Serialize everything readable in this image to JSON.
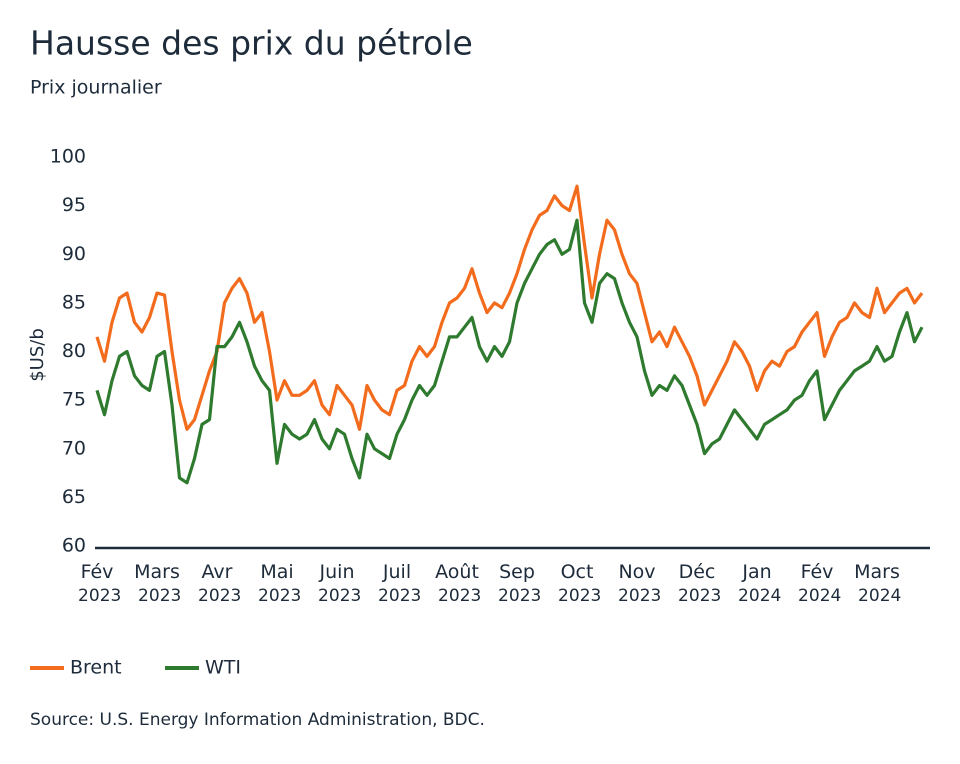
{
  "chart_data": {
    "type": "line",
    "title": "Hausse des prix du pétrole",
    "subtitle": "Prix journalier",
    "y_label": "$US/b",
    "source": "Source: U.S. Energy Information Administration, BDC.",
    "categories": [
      "Fév 2023",
      null,
      null,
      null,
      null,
      null,
      null,
      null,
      "Mars 2023",
      null,
      null,
      null,
      null,
      null,
      null,
      null,
      "Avr 2023",
      null,
      null,
      null,
      null,
      null,
      null,
      null,
      "Mai 2023",
      null,
      null,
      null,
      null,
      null,
      null,
      null,
      "Juin 2023",
      null,
      null,
      null,
      null,
      null,
      null,
      null,
      "Juil 2023",
      null,
      null,
      null,
      null,
      null,
      null,
      null,
      "Août 2023",
      null,
      null,
      null,
      null,
      null,
      null,
      null,
      "Sep 2023",
      null,
      null,
      null,
      null,
      null,
      null,
      null,
      "Oct 2023",
      null,
      null,
      null,
      null,
      null,
      null,
      null,
      "Nov 2023",
      null,
      null,
      null,
      null,
      null,
      null,
      null,
      "Déc 2023",
      null,
      null,
      null,
      null,
      null,
      null,
      null,
      "Jan 2024",
      null,
      null,
      null,
      null,
      null,
      null,
      null,
      "Fév 2024",
      null,
      null,
      null,
      null,
      null,
      null,
      null,
      "Mars 2024",
      null,
      null,
      null,
      null,
      null,
      null
    ],
    "series": [
      {
        "name": "Brent",
        "color": "#f36c1d",
        "values": [
          81.5,
          79,
          83,
          85.5,
          86,
          83,
          82,
          83.5,
          86,
          85.8,
          80,
          75,
          72,
          73,
          75.5,
          78,
          80,
          85,
          86.5,
          87.5,
          86,
          83,
          84,
          80,
          75,
          77,
          75.5,
          75.5,
          76,
          77,
          74.5,
          73.5,
          76.5,
          75.5,
          74.5,
          72,
          76.5,
          75,
          74,
          73.5,
          76,
          76.5,
          79,
          80.5,
          79.5,
          80.5,
          83,
          85,
          85.5,
          86.5,
          88.5,
          86,
          84,
          85,
          84.5,
          86,
          88,
          90.5,
          92.5,
          94,
          94.5,
          96,
          95,
          94.5,
          97,
          91,
          85.5,
          90,
          93.5,
          92.5,
          90,
          88,
          87,
          84,
          81,
          82,
          80.5,
          82.5,
          81,
          79.5,
          77.5,
          74.5,
          76,
          77.5,
          79,
          81,
          80,
          78.5,
          76,
          78,
          79,
          78.5,
          80,
          80.5,
          82,
          83,
          84,
          79.5,
          81.5,
          83,
          83.5,
          85,
          84,
          83.5,
          86.5,
          84,
          85,
          86,
          86.5,
          85,
          86
        ]
      },
      {
        "name": "WTI",
        "color": "#2e7a2e",
        "values": [
          76,
          73.5,
          77,
          79.5,
          80,
          77.5,
          76.5,
          76,
          79.5,
          80,
          74.5,
          67,
          66.5,
          69,
          72.5,
          73,
          80.5,
          80.5,
          81.5,
          83,
          81,
          78.5,
          77,
          76,
          68.5,
          72.5,
          71.5,
          71,
          71.5,
          73,
          71,
          70,
          72,
          71.5,
          69,
          67,
          71.5,
          70,
          69.5,
          69,
          71.5,
          73,
          75,
          76.5,
          75.5,
          76.5,
          79,
          81.5,
          81.5,
          82.5,
          83.5,
          80.5,
          79,
          80.5,
          79.5,
          81,
          85,
          87,
          88.5,
          90,
          91,
          91.5,
          90,
          90.5,
          93.5,
          85,
          83,
          87,
          88,
          87.5,
          85,
          83,
          81.5,
          78,
          75.5,
          76.5,
          76,
          77.5,
          76.5,
          74.5,
          72.5,
          69.5,
          70.5,
          71,
          72.5,
          74,
          73,
          72,
          71,
          72.5,
          73,
          73.5,
          74,
          75,
          75.5,
          77,
          78,
          73,
          74.5,
          76,
          77,
          78,
          78.5,
          79,
          80.5,
          79,
          79.5,
          82,
          84,
          81,
          82.5
        ]
      }
    ],
    "ylim": [
      60,
      100
    ],
    "yticks": [
      60,
      65,
      70,
      75,
      80,
      85,
      90,
      95,
      100
    ],
    "grid": false
  }
}
